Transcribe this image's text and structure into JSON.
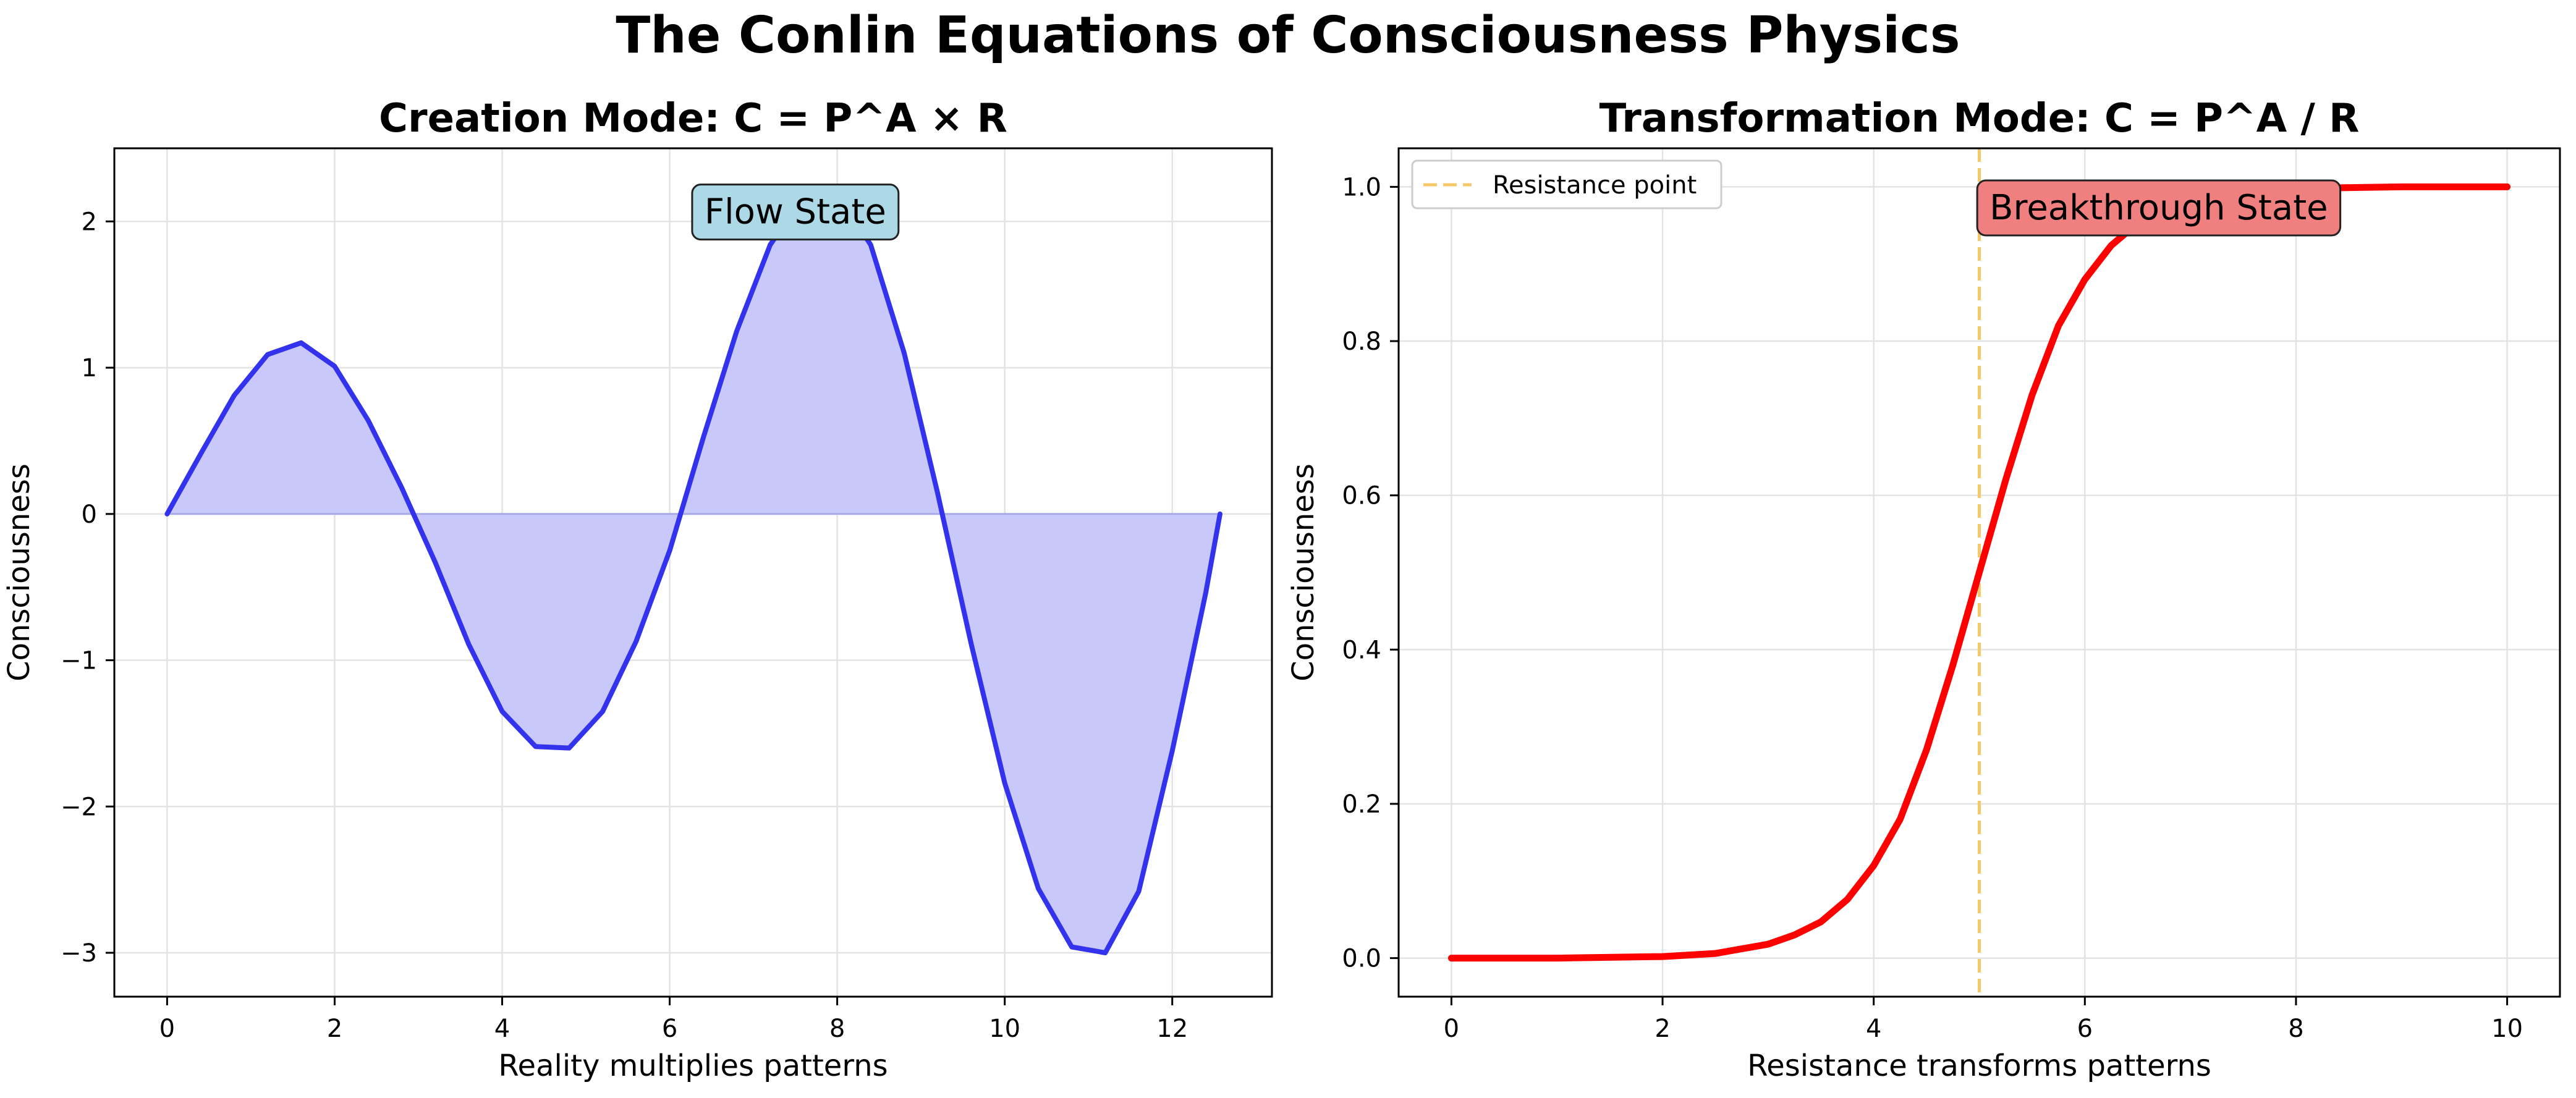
{
  "figure_title": "The Conlin Equations of Consciousness Physics",
  "chart_data": [
    {
      "type": "line",
      "title": "Creation Mode: C = P^A × R",
      "xlabel": "Reality multiplies patterns",
      "ylabel": "Consciousness",
      "xlim": [
        -0.63,
        13.19
      ],
      "ylim": [
        -3.3,
        2.5
      ],
      "x_ticks": [
        0,
        2,
        4,
        6,
        8,
        10,
        12
      ],
      "y_ticks": [
        -3,
        -2,
        -1,
        0,
        1,
        2
      ],
      "x_tick_labels": [
        "0",
        "2",
        "4",
        "6",
        "8",
        "10",
        "12"
      ],
      "y_tick_labels": [
        "−3",
        "−2",
        "−1",
        "0",
        "1",
        "2"
      ],
      "grid": true,
      "fill_to_zero": true,
      "line_color": "#3333ee",
      "fill_color": "#c8c8fb",
      "annotation": {
        "text": "Flow State",
        "x": 7.5,
        "y": 2.05,
        "box_color": "#add8e6"
      },
      "series": [
        {
          "x": [
            0,
            0.4,
            0.8,
            1.2,
            1.6,
            2.0,
            2.4,
            2.8,
            3.2,
            3.6,
            4.0,
            4.4,
            4.8,
            5.2,
            5.6,
            6.0,
            6.4,
            6.8,
            7.2,
            7.6,
            8.0,
            8.4,
            8.8,
            9.2,
            9.6,
            10.0,
            10.4,
            10.8,
            11.2,
            11.6,
            12.0,
            12.4,
            12.57
          ],
          "values": [
            0,
            0.41,
            0.81,
            1.09,
            1.17,
            1.01,
            0.64,
            0.18,
            -0.33,
            -0.89,
            -1.35,
            -1.59,
            -1.6,
            -1.35,
            -0.87,
            -0.25,
            0.52,
            1.25,
            1.84,
            2.17,
            2.19,
            1.84,
            1.1,
            0.14,
            -0.89,
            -1.84,
            -2.56,
            -2.96,
            -3.0,
            -2.58,
            -1.62,
            -0.54,
            0
          ]
        }
      ]
    },
    {
      "type": "line",
      "title": "Transformation Mode: C = P^A / R",
      "xlabel": "Resistance transforms patterns",
      "ylabel": "Consciousness",
      "xlim": [
        -0.5,
        10.5
      ],
      "ylim": [
        -0.05,
        1.05
      ],
      "x_ticks": [
        0,
        2,
        4,
        6,
        8,
        10
      ],
      "y_ticks": [
        0.0,
        0.2,
        0.4,
        0.6,
        0.8,
        1.0
      ],
      "x_tick_labels": [
        "0",
        "2",
        "4",
        "6",
        "8",
        "10"
      ],
      "y_tick_labels": [
        "0.0",
        "0.2",
        "0.4",
        "0.6",
        "0.8",
        "1.0"
      ],
      "grid": true,
      "line_color": "#ff0000",
      "vline": {
        "x": 5,
        "color": "#f5c86a",
        "label": "Resistance point"
      },
      "legend_loc": "upper left",
      "annotation": {
        "text": "Breakthrough State",
        "x": 6.7,
        "y": 0.97,
        "box_color": "#f08080"
      },
      "series": [
        {
          "x": [
            0,
            1,
            2,
            2.5,
            3,
            3.25,
            3.5,
            3.75,
            4,
            4.25,
            4.5,
            4.75,
            5,
            5.25,
            5.5,
            5.75,
            6,
            6.25,
            6.5,
            6.75,
            7,
            7.5,
            8,
            9,
            10
          ],
          "values": [
            0,
            0,
            0.002,
            0.006,
            0.018,
            0.03,
            0.047,
            0.076,
            0.12,
            0.18,
            0.27,
            0.38,
            0.5,
            0.62,
            0.73,
            0.82,
            0.88,
            0.924,
            0.953,
            0.97,
            0.982,
            0.994,
            0.998,
            1.0,
            1.0
          ]
        }
      ]
    }
  ]
}
